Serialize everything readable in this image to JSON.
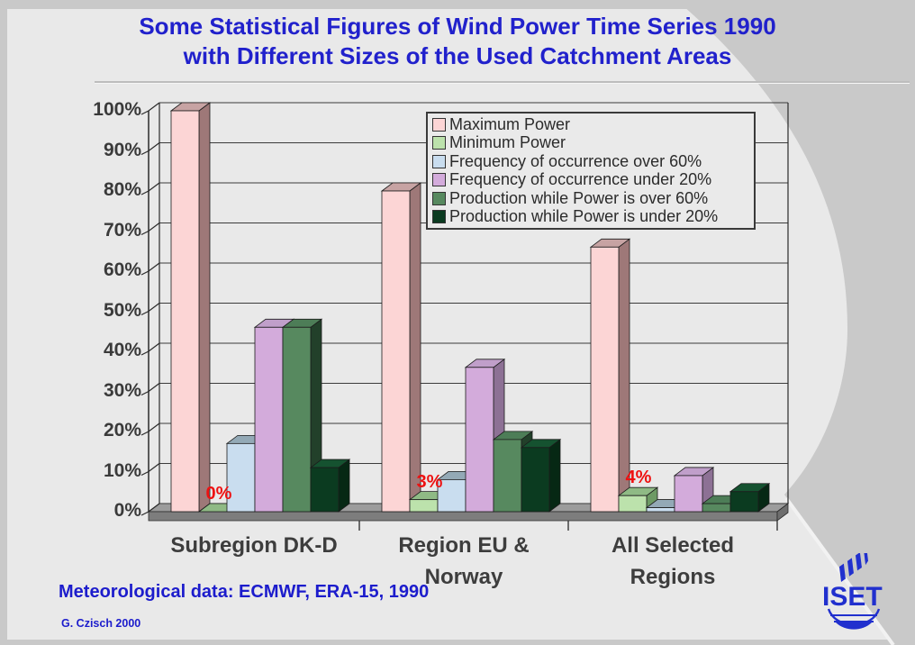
{
  "slide": {
    "title_line1": "Some Statistical Figures of Wind Power Time Series 1990",
    "title_line2": "with Different Sizes of the Used Catchment Areas",
    "footer_note": "Meteorological data: ECMWF, ERA-15, 1990",
    "credit": "G. Czisch 2000",
    "logo_text": "ISET"
  },
  "colors": {
    "title_blue": "#2121cc",
    "footer_blue": "#1c1ccc",
    "logo_blue": "#2130ce",
    "value_label_red": "#ee1111",
    "background_light": "#e9e9e9",
    "background_dark": "#c9c9c9",
    "floor_gray": "#9c9c9c",
    "grid_line": "#3c3c3c"
  },
  "chart_data": {
    "type": "bar",
    "projection": "3d",
    "title": "",
    "xlabel": "",
    "ylabel": "",
    "ylim": [
      0,
      100
    ],
    "grid": true,
    "legend_position": "top-right",
    "yticks": [
      "0%",
      "10%",
      "20%",
      "30%",
      "40%",
      "50%",
      "60%",
      "70%",
      "80%",
      "90%",
      "100%"
    ],
    "categories": [
      [
        "Subregion DK-D"
      ],
      [
        "Region EU &",
        "Norway"
      ],
      [
        "All Selected",
        "Regions"
      ]
    ],
    "series": [
      {
        "name": "Maximum Power",
        "color": "#fcd5d5",
        "top": "#c7a3a3",
        "side": "#9e7878",
        "values": [
          100,
          80,
          66
        ]
      },
      {
        "name": "Minimum Power",
        "color": "#bce2ac",
        "top": "#8fba85",
        "side": "#6d9a64",
        "values": [
          0,
          3,
          4
        ]
      },
      {
        "name": "Frequency of occurrence over 60%",
        "color": "#c9ddef",
        "top": "#93a9b6",
        "side": "#9fb9cc",
        "values": [
          17,
          8,
          1
        ]
      },
      {
        "name": "Frequency of occurrence under 20%",
        "color": "#d3abdb",
        "top": "#c09fca",
        "side": "#8d7195",
        "values": [
          46,
          36,
          9
        ]
      },
      {
        "name": "Production while Power is over 60%",
        "color": "#57895f",
        "top": "#4d7d57",
        "side": "#22402a",
        "values": [
          46,
          18,
          2
        ]
      },
      {
        "name": "Production while Power is under 20%",
        "color": "#0b3b20",
        "top": "#155230",
        "side": "#062814",
        "values": [
          11,
          16,
          5
        ]
      }
    ],
    "value_labels": {
      "series": "Minimum Power",
      "labels": [
        "0%",
        "3%",
        "4%"
      ]
    }
  }
}
